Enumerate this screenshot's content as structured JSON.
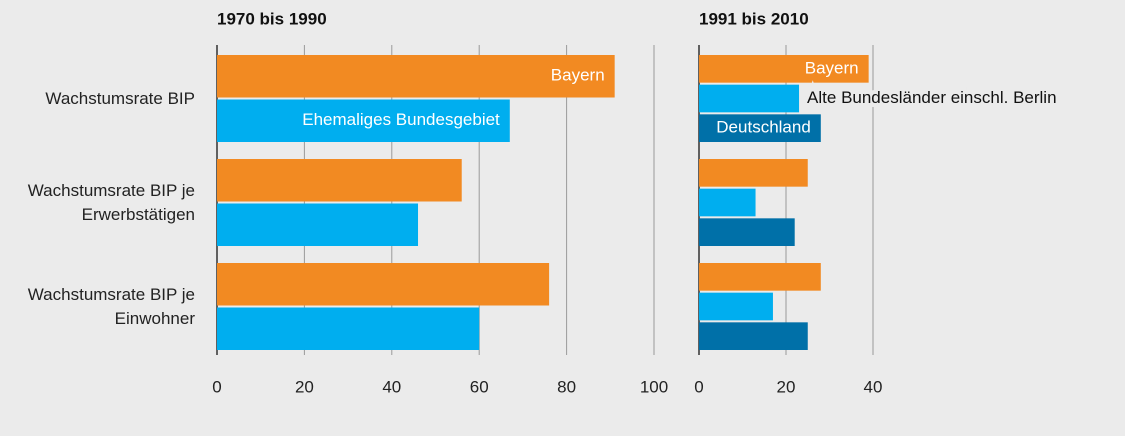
{
  "chart_data": [
    {
      "type": "bar",
      "title": "1970 bis 1990",
      "categories": [
        "Wachstumsrate BIP",
        "Wachstumsrate BIP je Erwerbstätigen",
        "Wachstumsrate BIP je Einwohner"
      ],
      "series": [
        {
          "name": "Bayern",
          "color": "#f28a22",
          "values": [
            91,
            56,
            76
          ]
        },
        {
          "name": "Ehemaliges Bundesgebiet",
          "color": "#00aeef",
          "values": [
            67,
            46,
            60
          ]
        }
      ],
      "xlim": [
        0,
        100
      ],
      "xticks": [
        0,
        20,
        40,
        60,
        80,
        100
      ],
      "grid": true
    },
    {
      "type": "bar",
      "title": "1991 bis 2010",
      "series": [
        {
          "name": "Bayern",
          "color": "#f28a22",
          "values": [
            39,
            25,
            28
          ]
        },
        {
          "name": "Alte Bundesländer einschl. Berlin",
          "color": "#00aeef",
          "values": [
            23,
            13,
            17
          ]
        },
        {
          "name": "Deutschland",
          "color": "#0070a8",
          "values": [
            28,
            22,
            25
          ]
        }
      ],
      "xlim": [
        0,
        40
      ],
      "xticks": [
        0,
        20,
        40
      ],
      "grid": true
    }
  ]
}
